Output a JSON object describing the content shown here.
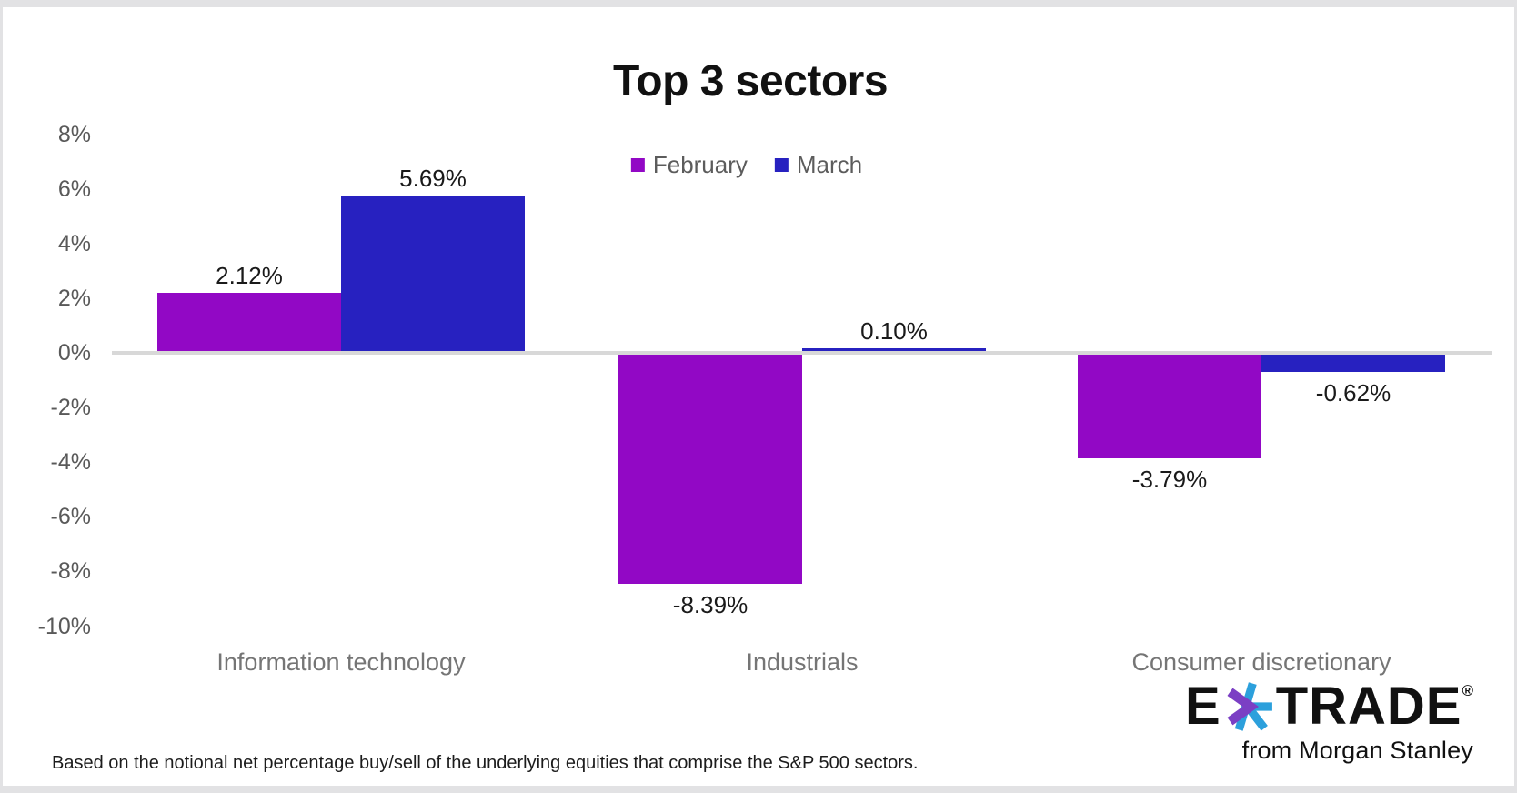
{
  "page": {
    "footnote": "Based on the notional net percentage buy/sell of the underlying equities that comprise the S&P 500 sectors.",
    "brand": {
      "logo_e": "E",
      "logo_trade": "TRADE",
      "reg": "®",
      "tagline": "from Morgan Stanley",
      "star_purple": "#7b3fc4",
      "star_blue": "#2ca0dc"
    }
  },
  "chart_data": {
    "type": "bar",
    "title": "Top 3 sectors",
    "categories": [
      "Information technology",
      "Industrials",
      "Consumer discretionary"
    ],
    "series": [
      {
        "name": "February",
        "color": "#9208c5",
        "values": [
          2.12,
          -8.39,
          -3.79
        ],
        "labels": [
          "2.12%",
          "-8.39%",
          "-3.79%"
        ]
      },
      {
        "name": "March",
        "color": "#2721c0",
        "values": [
          5.69,
          0.1,
          -0.62
        ],
        "labels": [
          "5.69%",
          "0.10%",
          "-0.62%"
        ]
      }
    ],
    "ylim": [
      -10,
      8
    ],
    "ytick_step": 2,
    "yticks": [
      "8%",
      "6%",
      "4%",
      "2%",
      "0%",
      "-2%",
      "-4%",
      "-6%",
      "-8%",
      "-10%"
    ],
    "ytick_values": [
      8,
      6,
      4,
      2,
      0,
      -2,
      -4,
      -6,
      -8,
      -10
    ],
    "grid": false,
    "legend_position": "top-center",
    "axis_line_color": "#d8d8d8",
    "xlabel": "",
    "ylabel": ""
  }
}
